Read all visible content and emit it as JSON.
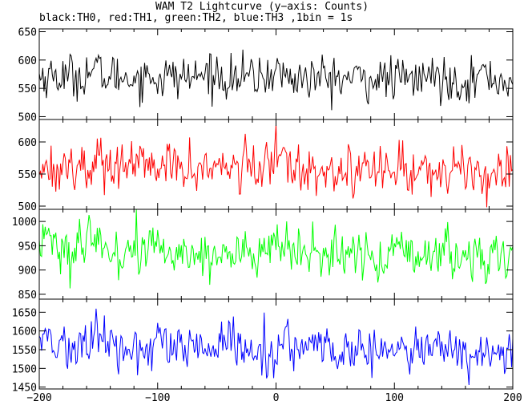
{
  "title": "WAM T2 Lightcurve (y−axis: Counts)",
  "subtitle": "black:TH0, red:TH1, green:TH2, blue:TH3 ,1bin = 1s",
  "chart_data": {
    "type": "line",
    "x_range": [
      -200,
      200
    ],
    "x_ticks": [
      -200,
      -100,
      0,
      100,
      200
    ],
    "x_tick_labels": [
      "−200",
      "−100",
      "0",
      "100",
      "200"
    ],
    "grid": false,
    "panels": [
      {
        "name": "TH0",
        "color": "#000000",
        "ylim": [
          495,
          655
        ],
        "y_ticks": [
          500,
          550,
          600,
          650
        ],
        "y_tick_labels": [
          "500",
          "550",
          "600",
          "650"
        ],
        "mean": 572,
        "sigma": 22,
        "features": [
          [
            -155,
            12
          ],
          [
            -55,
            10
          ],
          [
            0,
            14
          ],
          [
            130,
            8
          ],
          [
            175,
            10
          ]
        ]
      },
      {
        "name": "TH1",
        "color": "#ff0000",
        "ylim": [
          495,
          635
        ],
        "y_ticks": [
          500,
          550,
          600
        ],
        "y_tick_labels": [
          "500",
          "550",
          "600"
        ],
        "mean": 562,
        "sigma": 22,
        "features": [
          [
            -150,
            10
          ],
          [
            -120,
            8
          ],
          [
            2,
            28
          ],
          [
            30,
            8
          ]
        ]
      },
      {
        "name": "TH2",
        "color": "#00ff00",
        "ylim": [
          840,
          1025
        ],
        "y_ticks": [
          850,
          900,
          950,
          1000
        ],
        "y_tick_labels": [
          "850",
          "900",
          "950",
          "1000"
        ],
        "mean": 938,
        "sigma": 30,
        "features": [
          [
            -195,
            45
          ],
          [
            -150,
            25
          ],
          [
            -100,
            15
          ],
          [
            0,
            20
          ]
        ]
      },
      {
        "name": "TH3",
        "color": "#0000ff",
        "ylim": [
          1445,
          1685
        ],
        "y_ticks": [
          1450,
          1500,
          1550,
          1600,
          1650
        ],
        "y_tick_labels": [
          "1450",
          "1500",
          "1550",
          "1600",
          "1650"
        ],
        "mean": 1555,
        "sigma": 35,
        "features": [
          [
            -195,
            40
          ],
          [
            -150,
            35
          ],
          [
            -40,
            20
          ],
          [
            10,
            25
          ]
        ]
      }
    ]
  }
}
